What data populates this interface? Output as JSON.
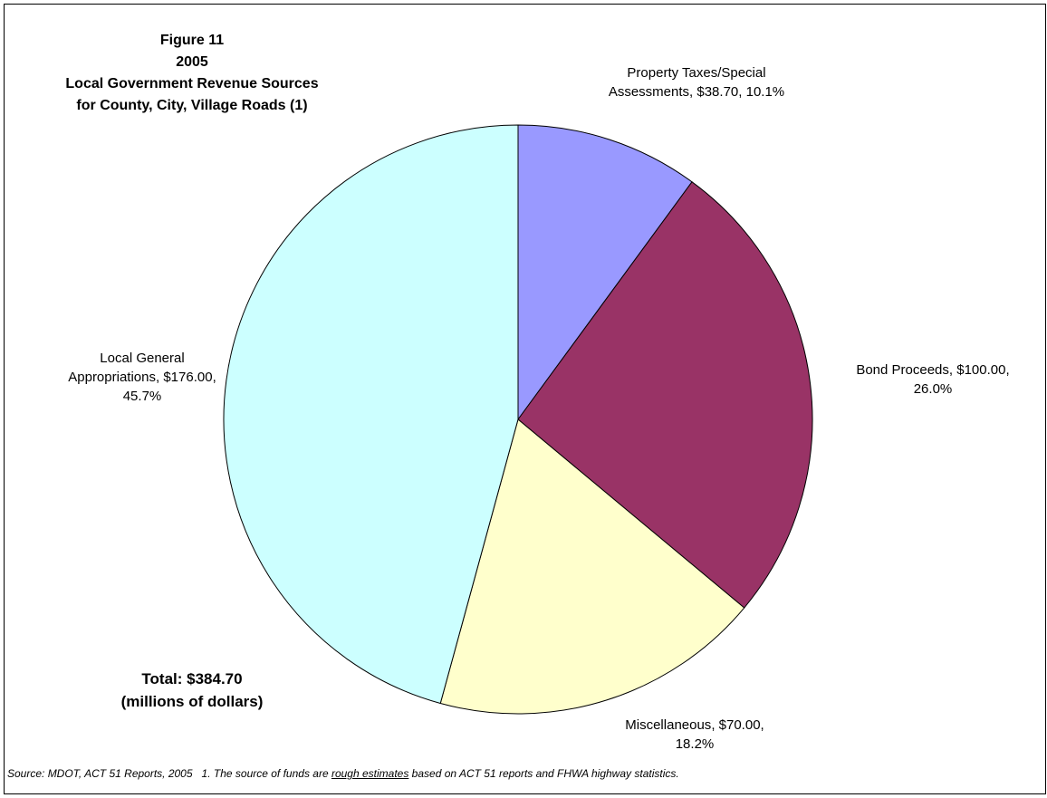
{
  "chart_data": {
    "type": "pie",
    "title": [
      "Figure 11",
      "2005",
      "Local Government Revenue Sources",
      "for County, City, Village Roads (1)"
    ],
    "categories": [
      "Property Taxes/Special Assessments",
      "Bond Proceeds",
      "Miscellaneous",
      "Local General Appropriations"
    ],
    "values": [
      38.7,
      100.0,
      70.0,
      176.0
    ],
    "value_labels": [
      "$38.70",
      "$100.00",
      "$70.00",
      "$176.00"
    ],
    "percent_labels": [
      "10.1%",
      "26.0%",
      "18.2%",
      "45.7%"
    ],
    "label_separator": ", ",
    "colors": [
      "#9999ff",
      "#993366",
      "#ffffcc",
      "#ccffff"
    ],
    "annotations": [
      "Total: $384.70",
      "(millions of dollars)"
    ],
    "footnote": [
      "Source: MDOT, ACT 51 Reports, 2005   1. The source of funds are ",
      "rough estimates",
      " based on ACT 51 reports and FHWA highway statistics."
    ]
  }
}
